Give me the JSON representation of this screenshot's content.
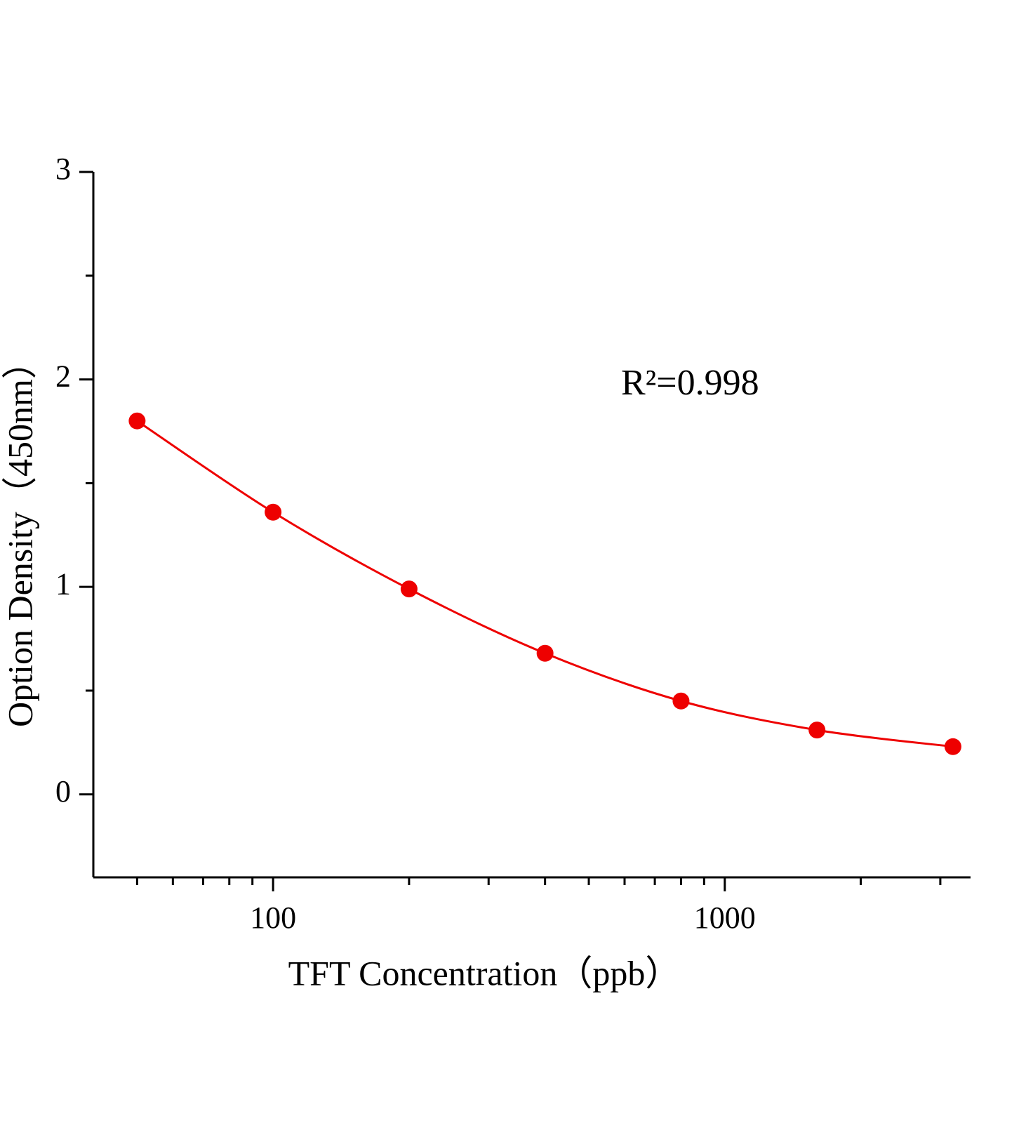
{
  "chart_data": {
    "type": "scatter-line",
    "x_label": "TFT Concentration（ppb）",
    "y_label": "Option Density（450nm）",
    "annotation": "R²=0.998",
    "x": [
      50,
      100,
      200,
      400,
      800,
      1600,
      3200
    ],
    "series": [
      {
        "color": "#ee0000",
        "values": [
          1.8,
          1.36,
          0.99,
          0.68,
          0.45,
          0.31,
          0.23
        ]
      }
    ],
    "x_log": true,
    "xlim": [
      40,
      3500
    ],
    "xticks": [
      100,
      1000
    ],
    "xminorticks": [
      50,
      60,
      70,
      80,
      90,
      200,
      300,
      400,
      500,
      600,
      700,
      800,
      900,
      2000,
      3000
    ],
    "ylim": [
      -0.4,
      3
    ],
    "yticks": [
      0,
      1,
      2,
      3
    ],
    "yminorticks": [
      0.5,
      1.5,
      2.5
    ],
    "grid": false
  }
}
